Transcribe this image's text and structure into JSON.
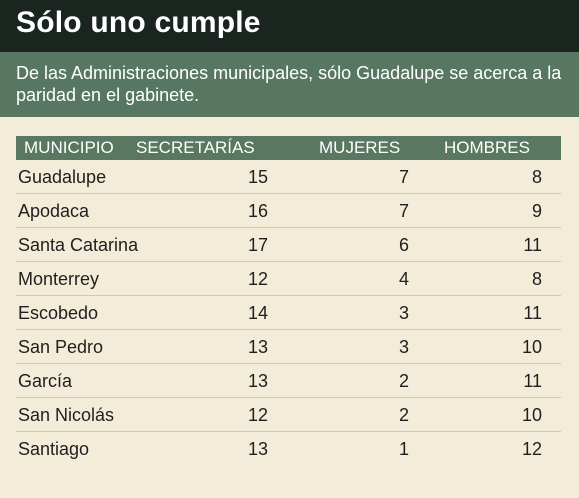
{
  "title": "Sólo uno cumple",
  "subtitle": "De las Administraciones municipales, sólo Guadalupe se acerca a la paridad en el gabinete.",
  "colors": {
    "title_bg": "#19251e",
    "subtitle_bg": "#587763",
    "header_bg": "#597761",
    "page_bg": "#f3ecd8"
  },
  "chart_data": {
    "type": "table",
    "columns": [
      "MUNICIPIO",
      "SECRETARÍAS",
      "MUJERES",
      "HOMBRES"
    ],
    "rows": [
      [
        "Guadalupe",
        15,
        7,
        8
      ],
      [
        "Apodaca",
        16,
        7,
        9
      ],
      [
        "Santa Catarina",
        17,
        6,
        11
      ],
      [
        "Monterrey",
        12,
        4,
        8
      ],
      [
        "Escobedo",
        14,
        3,
        11
      ],
      [
        "San Pedro",
        13,
        3,
        10
      ],
      [
        "García",
        13,
        2,
        11
      ],
      [
        "San Nicolás",
        12,
        2,
        10
      ],
      [
        "Santiago",
        13,
        1,
        12
      ]
    ]
  }
}
